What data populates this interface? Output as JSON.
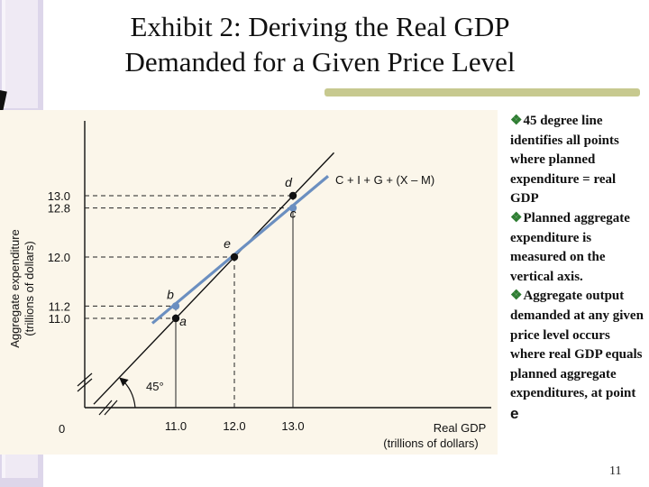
{
  "slide": {
    "title_line1": "Exhibit 2: Deriving the Real GDP",
    "title_line2": "Demanded for a Given Price Level",
    "slide_number": "11"
  },
  "notes": [
    "45 degree line identifies all points where planned expenditure = real GDP",
    "Planned aggregate expenditure is measured on the vertical axis.",
    "Aggregate output demanded at any given price level occurs where real GDP equals planned aggregate expenditures, at"
  ],
  "notes_point": "point",
  "notes_point_letter": "e",
  "bullet_icon": "diamond-bullet-icon",
  "diagram": {
    "y_axis_label_line1": "Aggregate expenditure",
    "y_axis_label_line2": "(trillions of dollars)",
    "x_axis_label_line1": "Real GDP",
    "x_axis_label_line2": "(trillions of dollars)",
    "origin_label": "0",
    "angle_label": "45°",
    "ae_line_label": "C + I + G + (X – M)",
    "ae_line_color": "#6b8fc0",
    "point_color_black": "#111111",
    "point_color_blue": "#6b8fc0",
    "x_ticks": [
      {
        "value": 11.0,
        "label": "11.0"
      },
      {
        "value": 12.0,
        "label": "12.0"
      },
      {
        "value": 13.0,
        "label": "13.0"
      }
    ],
    "y_ticks": [
      {
        "value": 11.0,
        "label": "11.0"
      },
      {
        "value": 11.2,
        "label": "11.2"
      },
      {
        "value": 12.0,
        "label": "12.0"
      },
      {
        "value": 12.8,
        "label": "12.8"
      },
      {
        "value": 13.0,
        "label": "13.0"
      }
    ],
    "points": [
      {
        "name": "a",
        "x": 11.0,
        "y": 11.0,
        "style": "black"
      },
      {
        "name": "b",
        "x": 11.0,
        "y": 11.2,
        "style": "blue"
      },
      {
        "name": "e",
        "x": 12.0,
        "y": 12.0,
        "style": "black"
      },
      {
        "name": "c",
        "x": 13.0,
        "y": 12.8,
        "style": "blue"
      },
      {
        "name": "d",
        "x": 13.0,
        "y": 13.0,
        "style": "black"
      }
    ],
    "ae_line": {
      "x_start": 10.6,
      "y_start": 10.92,
      "x_end": 13.6,
      "y_end": 13.32
    },
    "line_45": {
      "x_start": 9.6,
      "x_end": 13.7
    }
  }
}
